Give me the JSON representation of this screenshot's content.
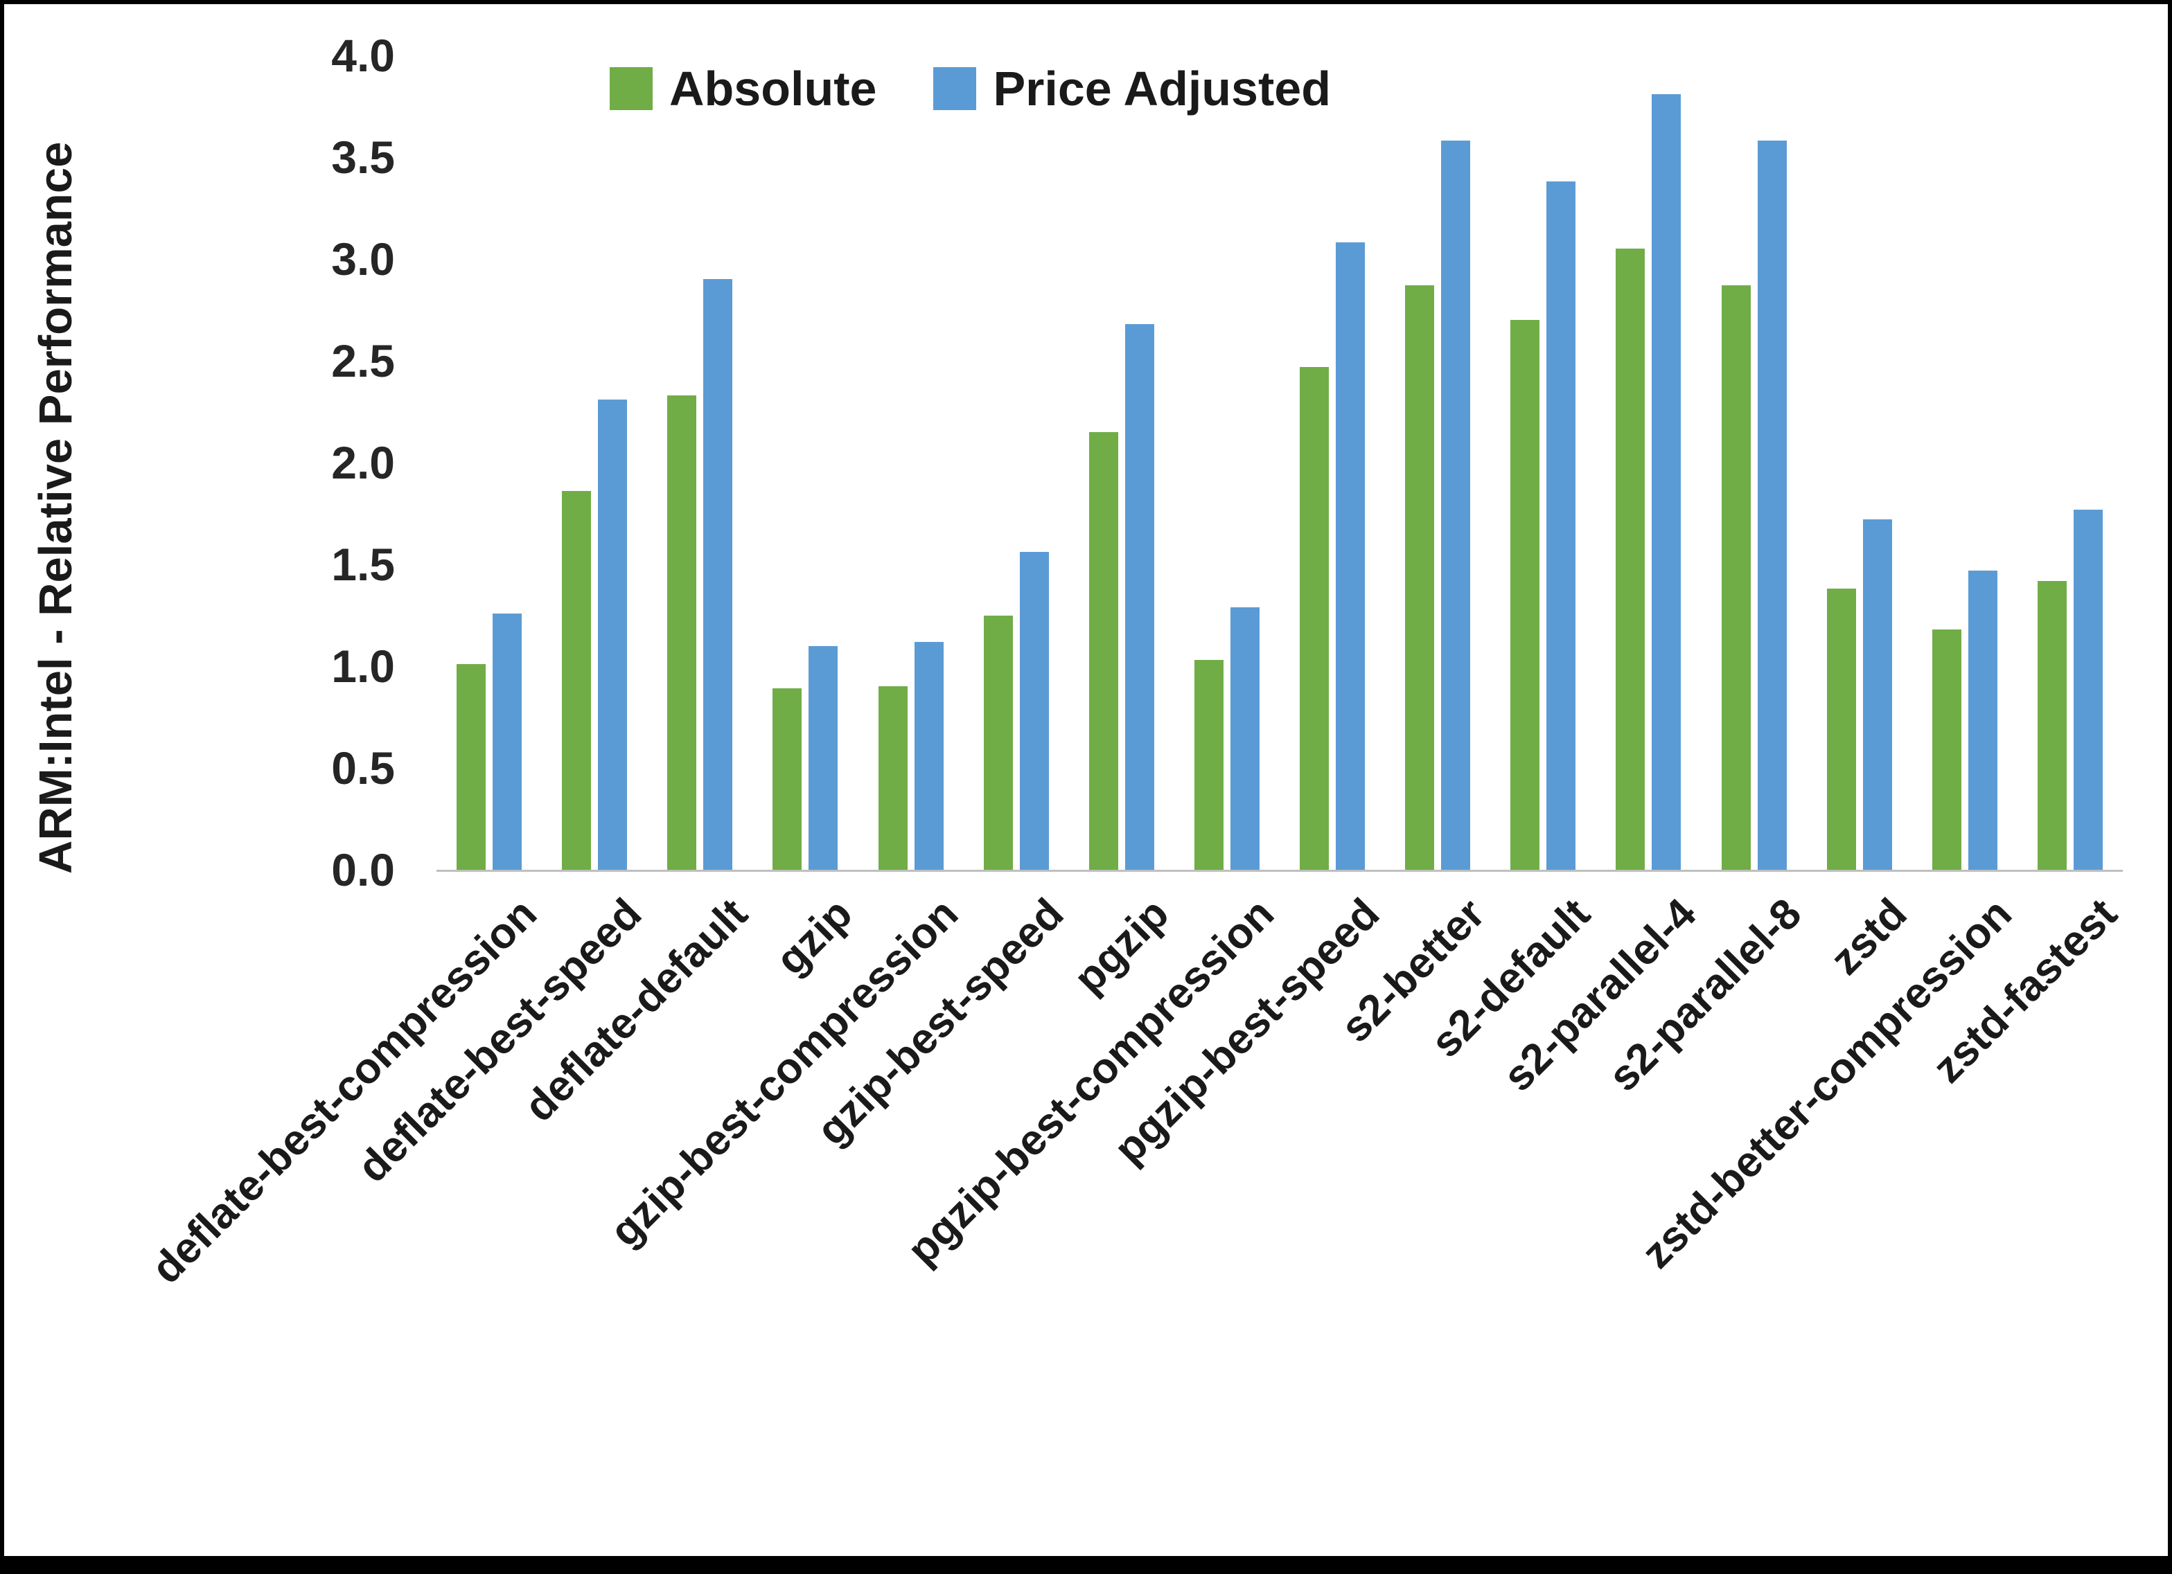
{
  "chart_data": {
    "type": "bar",
    "title": "",
    "xlabel": "",
    "ylabel": "ARM:Intel - Relative Performance",
    "ylim": [
      0,
      4.0
    ],
    "yticks": [
      "0.0",
      "0.5",
      "1.0",
      "1.5",
      "2.0",
      "2.5",
      "3.0",
      "3.5",
      "4.0"
    ],
    "grid": false,
    "legend_position": "top",
    "background": "#ffffff",
    "axis_line_color": "#bfbfbf",
    "categories": [
      "deflate-best-compression",
      "deflate-best-speed",
      "deflate-default",
      "gzip",
      "gzip-best-compression",
      "gzip-best-speed",
      "pgzip",
      "pgzip-best-compression",
      "pgzip-best-speed",
      "s2-better",
      "s2-default",
      "s2-parallel-4",
      "s2-parallel-8",
      "zstd",
      "zstd-better-compression",
      "zstd-fastest"
    ],
    "series": [
      {
        "name": "Absolute",
        "color": "#70AD47",
        "values": [
          1.01,
          1.86,
          2.33,
          0.89,
          0.9,
          1.25,
          2.15,
          1.03,
          2.47,
          2.87,
          2.7,
          3.05,
          2.87,
          1.38,
          1.18,
          1.42
        ]
      },
      {
        "name": "Price Adjusted",
        "color": "#5B9BD5",
        "values": [
          1.26,
          2.31,
          2.9,
          1.1,
          1.12,
          1.56,
          2.68,
          1.29,
          3.08,
          3.58,
          3.38,
          3.81,
          3.58,
          1.72,
          1.47,
          1.77
        ]
      }
    ]
  }
}
